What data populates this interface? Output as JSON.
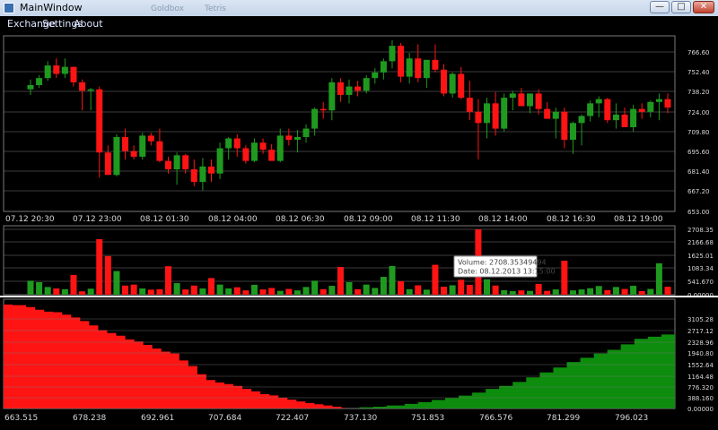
{
  "window": {
    "title": "MainWindow",
    "faint_text": [
      "Goldbox",
      "Tetris"
    ]
  },
  "menu": {
    "items": [
      "Exchange",
      "Settings",
      "About"
    ]
  },
  "colors": {
    "up": "#1f9a1f",
    "down": "#ff1414",
    "bid": "#ff1414",
    "ask": "#0d8c0d",
    "grid": "#7a7a7a",
    "text": "#d8d8d8"
  },
  "chart_data": [
    {
      "type": "candlestick",
      "name": "price",
      "yticks": [
        "766.60",
        "752.40",
        "738.20",
        "724.00",
        "709.80",
        "695.60",
        "681.40",
        "667.20",
        "653.00"
      ],
      "ylim": [
        653,
        773
      ],
      "xticks": [
        "07.12 20:30",
        "07.12 23:00",
        "08.12 01:30",
        "08.12 04:00",
        "08.12 06:30",
        "08.12 09:00",
        "08.12 11:30",
        "08.12 14:00",
        "08.12 16:30",
        "08.12 19:00"
      ],
      "ohlc": [
        [
          740,
          747,
          736,
          743
        ],
        [
          743,
          750,
          741,
          748
        ],
        [
          748,
          760,
          746,
          757
        ],
        [
          757,
          762,
          748,
          751
        ],
        [
          751,
          762,
          748,
          756
        ],
        [
          756,
          756,
          742,
          745
        ],
        [
          745,
          747,
          725,
          739
        ],
        [
          739,
          741,
          725,
          740
        ],
        [
          740,
          742,
          677,
          695
        ],
        [
          695,
          700,
          680,
          679
        ],
        [
          679,
          708,
          678,
          706
        ],
        [
          706,
          712,
          690,
          696
        ],
        [
          696,
          700,
          690,
          692
        ],
        [
          692,
          709,
          690,
          707
        ],
        [
          707,
          709,
          700,
          703
        ],
        [
          703,
          712,
          688,
          689
        ],
        [
          689,
          692,
          680,
          683
        ],
        [
          683,
          695,
          672,
          693
        ],
        [
          693,
          694,
          680,
          683
        ],
        [
          683,
          690,
          671,
          674
        ],
        [
          674,
          691,
          668,
          685
        ],
        [
          685,
          690,
          674,
          680
        ],
        [
          680,
          702,
          676,
          698
        ],
        [
          698,
          706,
          690,
          705
        ],
        [
          705,
          708,
          692,
          698
        ],
        [
          698,
          700,
          687,
          689
        ],
        [
          689,
          705,
          688,
          702
        ],
        [
          702,
          705,
          694,
          697
        ],
        [
          697,
          701,
          690,
          689
        ],
        [
          689,
          712,
          688,
          707
        ],
        [
          707,
          712,
          700,
          704
        ],
        [
          704,
          711,
          695,
          706
        ],
        [
          706,
          715,
          702,
          712
        ],
        [
          712,
          727,
          707,
          726
        ],
        [
          726,
          731,
          719,
          725
        ],
        [
          725,
          748,
          718,
          745
        ],
        [
          745,
          748,
          731,
          736
        ],
        [
          736,
          747,
          730,
          742
        ],
        [
          742,
          746,
          735,
          739
        ],
        [
          739,
          750,
          737,
          748
        ],
        [
          748,
          755,
          744,
          752
        ],
        [
          752,
          762,
          747,
          760
        ],
        [
          760,
          775,
          755,
          771
        ],
        [
          771,
          773,
          745,
          749
        ],
        [
          749,
          766,
          744,
          762
        ],
        [
          762,
          772,
          745,
          748
        ],
        [
          748,
          761,
          741,
          761
        ],
        [
          761,
          772,
          752,
          754
        ],
        [
          754,
          758,
          735,
          737
        ],
        [
          737,
          752,
          734,
          751
        ],
        [
          751,
          756,
          733,
          734
        ],
        [
          734,
          746,
          718,
          724
        ],
        [
          724,
          733,
          690,
          716
        ],
        [
          716,
          734,
          705,
          730
        ],
        [
          730,
          738,
          707,
          712
        ],
        [
          712,
          737,
          710,
          734
        ],
        [
          734,
          739,
          725,
          737
        ],
        [
          737,
          741,
          729,
          728
        ],
        [
          728,
          737,
          723,
          737
        ],
        [
          737,
          740,
          722,
          726
        ],
        [
          726,
          731,
          719,
          719
        ],
        [
          719,
          727,
          705,
          724
        ],
        [
          724,
          727,
          698,
          704
        ],
        [
          704,
          717,
          694,
          716
        ],
        [
          716,
          722,
          700,
          721
        ],
        [
          721,
          732,
          717,
          730
        ],
        [
          730,
          735,
          720,
          733
        ],
        [
          733,
          734,
          716,
          718
        ],
        [
          718,
          730,
          712,
          722
        ],
        [
          722,
          727,
          714,
          713
        ],
        [
          713,
          729,
          710,
          726
        ],
        [
          726,
          730,
          719,
          724
        ],
        [
          724,
          732,
          720,
          731
        ],
        [
          731,
          737,
          718,
          733
        ],
        [
          733,
          737,
          723,
          727
        ]
      ]
    },
    {
      "type": "bar",
      "name": "volume",
      "yticks": [
        "2708.35",
        "2166.68",
        "1625.01",
        "1083.34",
        "541.670",
        "0.00000"
      ],
      "ylim": [
        0,
        2708.35
      ],
      "values": [
        580,
        520,
        320,
        260,
        230,
        820,
        140,
        250,
        2300,
        1600,
        980,
        380,
        420,
        260,
        210,
        230,
        1180,
        480,
        220,
        380,
        260,
        690,
        420,
        260,
        310,
        180,
        410,
        220,
        280,
        160,
        240,
        180,
        320,
        580,
        230,
        370,
        1150,
        520,
        230,
        420,
        280,
        740,
        1190,
        560,
        230,
        390,
        210,
        1240,
        330,
        390,
        620,
        410,
        2708,
        640,
        380,
        190,
        150,
        180,
        160,
        450,
        160,
        220,
        1410,
        180,
        220,
        270,
        360,
        190,
        320,
        240,
        370,
        150,
        240,
        1300,
        330
      ],
      "tooltip": {
        "volume_label": "Volume: 2708.35349494",
        "date_label": "Date: 08.12.2013 13:15:00"
      }
    },
    {
      "type": "area",
      "name": "depth",
      "yticks": [
        "3105.28",
        "2717.12",
        "2328.96",
        "1940.80",
        "1552.64",
        "1164.48",
        "776.320",
        "388.160",
        "0.00000"
      ],
      "ylim": [
        0,
        3400
      ],
      "xticks": [
        "663.515",
        "678.238",
        "692.961",
        "707.684",
        "722.407",
        "737.130",
        "751.853",
        "766.576",
        "781.299",
        "796.023"
      ],
      "xlim": [
        661,
        810
      ],
      "bids": [
        [
          661,
          3400
        ],
        [
          663,
          3380
        ],
        [
          666,
          3320
        ],
        [
          668,
          3230
        ],
        [
          670,
          3170
        ],
        [
          672,
          3150
        ],
        [
          674,
          3070
        ],
        [
          676,
          2980
        ],
        [
          678,
          2860
        ],
        [
          680,
          2720
        ],
        [
          682,
          2560
        ],
        [
          684,
          2470
        ],
        [
          686,
          2380
        ],
        [
          688,
          2260
        ],
        [
          690,
          2190
        ],
        [
          692,
          2080
        ],
        [
          694,
          1960
        ],
        [
          696,
          1860
        ],
        [
          698,
          1800
        ],
        [
          700,
          1570
        ],
        [
          702,
          1390
        ],
        [
          704,
          1120
        ],
        [
          706,
          930
        ],
        [
          708,
          850
        ],
        [
          710,
          800
        ],
        [
          712,
          740
        ],
        [
          714,
          640
        ],
        [
          716,
          560
        ],
        [
          718,
          470
        ],
        [
          720,
          430
        ],
        [
          722,
          350
        ],
        [
          724,
          290
        ],
        [
          726,
          230
        ],
        [
          728,
          180
        ],
        [
          730,
          140
        ],
        [
          732,
          100
        ],
        [
          734,
          60
        ],
        [
          736,
          20
        ],
        [
          737,
          0
        ]
      ],
      "asks": [
        [
          737,
          0
        ],
        [
          740,
          40
        ],
        [
          743,
          60
        ],
        [
          746,
          100
        ],
        [
          750,
          150
        ],
        [
          753,
          210
        ],
        [
          756,
          280
        ],
        [
          759,
          340
        ],
        [
          762,
          420
        ],
        [
          765,
          520
        ],
        [
          768,
          640
        ],
        [
          771,
          740
        ],
        [
          774,
          870
        ],
        [
          777,
          1020
        ],
        [
          780,
          1180
        ],
        [
          783,
          1340
        ],
        [
          786,
          1520
        ],
        [
          789,
          1660
        ],
        [
          792,
          1800
        ],
        [
          795,
          1920
        ],
        [
          798,
          2100
        ],
        [
          801,
          2280
        ],
        [
          804,
          2350
        ],
        [
          807,
          2420
        ],
        [
          810,
          2450
        ]
      ]
    }
  ]
}
